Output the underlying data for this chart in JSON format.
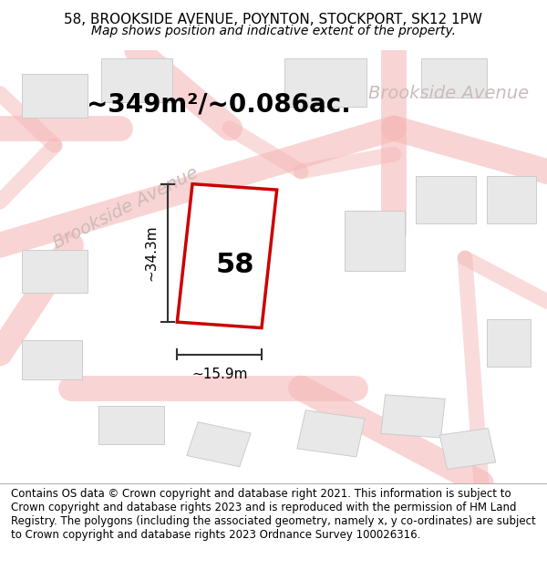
{
  "title_line1": "58, BROOKSIDE AVENUE, POYNTON, STOCKPORT, SK12 1PW",
  "title_line2": "Map shows position and indicative extent of the property.",
  "footer_text": "Contains OS data © Crown copyright and database right 2021. This information is subject to Crown copyright and database rights 2023 and is reproduced with the permission of HM Land Registry. The polygons (including the associated geometry, namely x, y co-ordinates) are subject to Crown copyright and database rights 2023 Ordnance Survey 100026316.",
  "area_label": "~349m²/~0.086ac.",
  "property_number": "58",
  "dim_height": "~34.3m",
  "dim_width": "~15.9m",
  "street_label_diag": "Brookside Avenue",
  "street_label_top": "Brookside Avenue",
  "bg_color": "#ffffff",
  "map_bg": "#fdf5f5",
  "road_color": "#f5b8b8",
  "building_fill": "#e8e8e8",
  "building_edge": "#cccccc",
  "property_color": "#cc0000",
  "street_text_color": "#ccbbbb",
  "dim_line_color": "#333333",
  "title_fontsize": 11,
  "subtitle_fontsize": 10,
  "footer_fontsize": 8.5,
  "area_fontsize": 20,
  "property_num_fontsize": 22,
  "dim_fontsize": 11,
  "street_fontsize": 14
}
